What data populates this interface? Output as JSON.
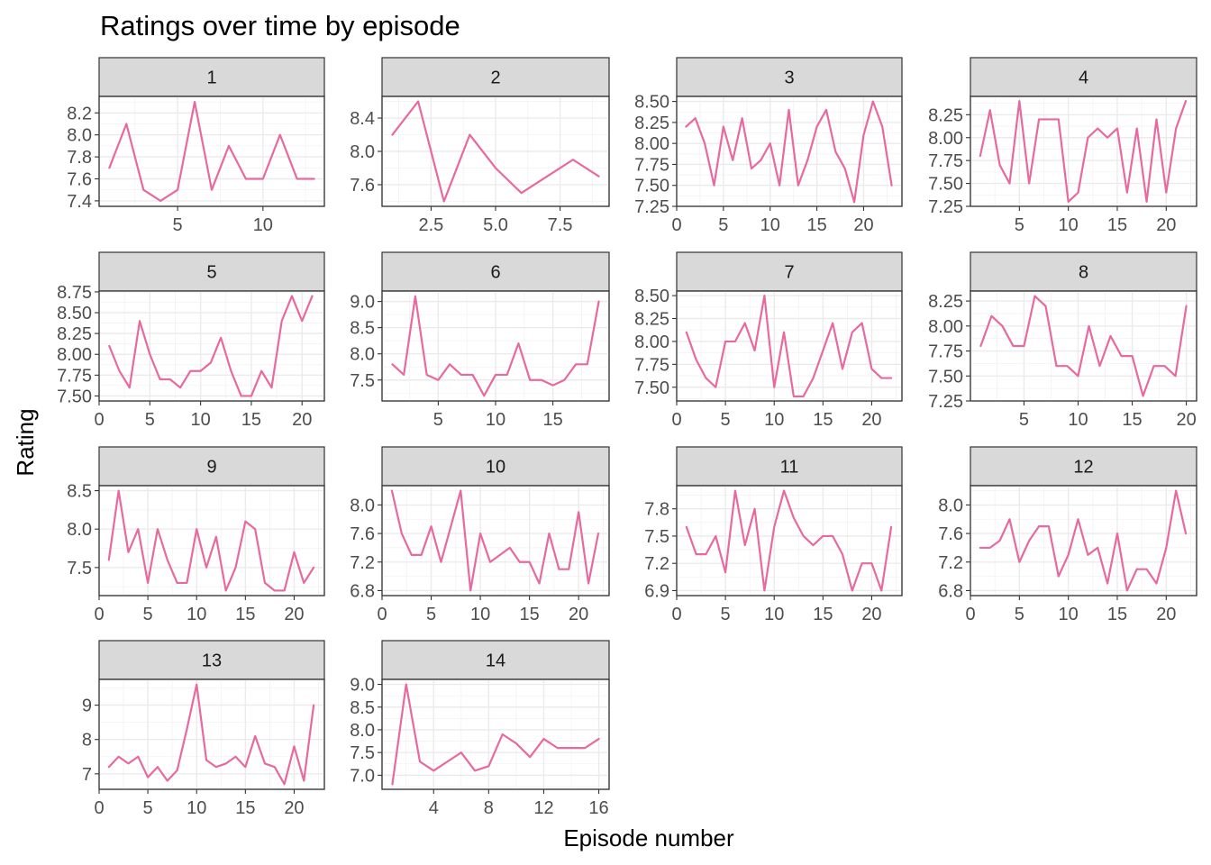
{
  "chart_data": {
    "type": "line",
    "title": "Ratings over time by episode",
    "xlabel": "Episode number",
    "ylabel": "Rating",
    "grid": true,
    "facet_layout": "4 columns, free scales",
    "line_color": "#e7699f",
    "strip_color": "#d9d9d9",
    "panels": [
      {
        "label": "1",
        "x": [
          1,
          2,
          3,
          4,
          5,
          6,
          7,
          8,
          9,
          10,
          11,
          12,
          13
        ],
        "y": [
          7.7,
          8.1,
          7.5,
          7.4,
          7.5,
          8.3,
          7.5,
          7.9,
          7.6,
          7.6,
          8.0,
          7.6,
          7.6
        ],
        "xlim": [
          0.4,
          13.6
        ],
        "ylim": [
          7.35,
          8.35
        ],
        "xticks": [
          5,
          10
        ],
        "yticks": [
          7.4,
          7.6,
          7.8,
          8.0,
          8.2
        ]
      },
      {
        "label": "2",
        "x": [
          1,
          2,
          3,
          4,
          5,
          6,
          7,
          8,
          9
        ],
        "y": [
          8.2,
          8.6,
          7.4,
          8.2,
          7.8,
          7.5,
          7.7,
          7.9,
          7.7
        ],
        "xlim": [
          0.6,
          9.4
        ],
        "ylim": [
          7.34,
          8.66
        ],
        "xticks": [
          2.5,
          5.0,
          7.5
        ],
        "yticks": [
          7.6,
          8.0,
          8.4
        ]
      },
      {
        "label": "3",
        "x": [
          1,
          2,
          3,
          4,
          5,
          6,
          7,
          8,
          9,
          10,
          11,
          12,
          13,
          14,
          15,
          16,
          17,
          18,
          19,
          20,
          21,
          22,
          23
        ],
        "y": [
          8.2,
          8.3,
          8.0,
          7.5,
          8.2,
          7.8,
          8.3,
          7.7,
          7.8,
          8.0,
          7.5,
          8.4,
          7.5,
          7.8,
          8.2,
          8.4,
          7.9,
          7.7,
          7.3,
          8.1,
          8.5,
          8.2,
          7.5
        ],
        "xlim": [
          0,
          24.1
        ],
        "ylim": [
          7.25,
          8.56
        ],
        "xticks": [
          0,
          5,
          10,
          15,
          20
        ],
        "yticks": [
          7.25,
          7.5,
          7.75,
          8.0,
          8.25,
          8.5
        ]
      },
      {
        "label": "4",
        "x": [
          1,
          2,
          3,
          4,
          5,
          6,
          7,
          8,
          9,
          10,
          11,
          12,
          13,
          14,
          15,
          16,
          17,
          18,
          19,
          20,
          21,
          22
        ],
        "y": [
          7.8,
          8.3,
          7.7,
          7.5,
          8.4,
          7.5,
          8.2,
          8.2,
          8.2,
          7.3,
          7.4,
          8.0,
          8.1,
          8.0,
          8.1,
          7.4,
          8.1,
          7.3,
          8.2,
          7.4,
          8.1,
          8.4
        ],
        "xlim": [
          0,
          23.1
        ],
        "ylim": [
          7.25,
          8.45
        ],
        "xticks": [
          5,
          10,
          15,
          20
        ],
        "yticks": [
          7.25,
          7.5,
          7.75,
          8.0,
          8.25
        ]
      },
      {
        "label": "5",
        "x": [
          1,
          2,
          3,
          4,
          5,
          6,
          7,
          8,
          9,
          10,
          11,
          12,
          13,
          14,
          15,
          16,
          17,
          18,
          19,
          20,
          21
        ],
        "y": [
          8.1,
          7.8,
          7.6,
          8.4,
          8.0,
          7.7,
          7.7,
          7.6,
          7.8,
          7.8,
          7.9,
          8.2,
          7.8,
          7.5,
          7.5,
          7.8,
          7.6,
          8.4,
          8.7,
          8.4,
          8.7
        ],
        "xlim": [
          0,
          22.2
        ],
        "ylim": [
          7.44,
          8.76
        ],
        "xticks": [
          0,
          5,
          10,
          15,
          20
        ],
        "yticks": [
          7.5,
          7.75,
          8.0,
          8.25,
          8.5,
          8.75
        ]
      },
      {
        "label": "6",
        "x": [
          1,
          2,
          3,
          4,
          5,
          6,
          7,
          8,
          9,
          10,
          11,
          12,
          13,
          14,
          15,
          16,
          17,
          18,
          19
        ],
        "y": [
          7.8,
          7.6,
          9.1,
          7.6,
          7.5,
          7.8,
          7.6,
          7.6,
          7.2,
          7.6,
          7.6,
          8.2,
          7.5,
          7.5,
          7.4,
          7.5,
          7.8,
          7.8,
          9.0
        ],
        "xlim": [
          0.1,
          19.9
        ],
        "ylim": [
          7.1,
          9.2
        ],
        "xticks": [
          5,
          10,
          15
        ],
        "yticks": [
          7.5,
          8.0,
          8.5,
          9.0
        ]
      },
      {
        "label": "7",
        "x": [
          1,
          2,
          3,
          4,
          5,
          6,
          7,
          8,
          9,
          10,
          11,
          12,
          13,
          14,
          15,
          16,
          17,
          18,
          19,
          20,
          21,
          22
        ],
        "y": [
          8.1,
          7.8,
          7.6,
          7.5,
          8.0,
          8.0,
          8.2,
          7.9,
          8.5,
          7.5,
          8.1,
          7.4,
          7.4,
          7.6,
          7.9,
          8.2,
          7.7,
          8.1,
          8.2,
          7.7,
          7.6,
          7.6
        ],
        "xlim": [
          0,
          23.1
        ],
        "ylim": [
          7.35,
          8.55
        ],
        "xticks": [
          0,
          5,
          10,
          15,
          20
        ],
        "yticks": [
          7.5,
          7.75,
          8.0,
          8.25,
          8.5
        ]
      },
      {
        "label": "8",
        "x": [
          1,
          2,
          3,
          4,
          5,
          6,
          7,
          8,
          9,
          10,
          11,
          12,
          13,
          14,
          15,
          16,
          17,
          18,
          19,
          20
        ],
        "y": [
          7.8,
          8.1,
          8.0,
          7.8,
          7.8,
          8.3,
          8.2,
          7.6,
          7.6,
          7.5,
          8.0,
          7.6,
          7.9,
          7.7,
          7.7,
          7.3,
          7.6,
          7.6,
          7.5,
          8.2
        ],
        "xlim": [
          0.05,
          20.95
        ],
        "ylim": [
          7.25,
          8.35
        ],
        "xticks": [
          5,
          10,
          15,
          20
        ],
        "yticks": [
          7.25,
          7.5,
          7.75,
          8.0,
          8.25
        ]
      },
      {
        "label": "9",
        "x": [
          1,
          2,
          3,
          4,
          5,
          6,
          7,
          8,
          9,
          10,
          11,
          12,
          13,
          14,
          15,
          16,
          17,
          18,
          19,
          20,
          21,
          22
        ],
        "y": [
          7.6,
          8.5,
          7.7,
          8.0,
          7.3,
          8.0,
          7.6,
          7.3,
          7.3,
          8.0,
          7.5,
          7.9,
          7.2,
          7.5,
          8.1,
          8.0,
          7.3,
          7.2,
          7.2,
          7.7,
          7.3,
          7.5
        ],
        "xlim": [
          0,
          23.1
        ],
        "ylim": [
          7.135,
          8.565
        ],
        "xticks": [
          0,
          5,
          10,
          15,
          20
        ],
        "yticks": [
          7.5,
          8.0,
          8.5
        ]
      },
      {
        "label": "10",
        "x": [
          1,
          2,
          3,
          4,
          5,
          6,
          7,
          8,
          9,
          10,
          11,
          12,
          13,
          14,
          15,
          16,
          17,
          18,
          19,
          20,
          21,
          22
        ],
        "y": [
          8.2,
          7.6,
          7.3,
          7.3,
          7.7,
          7.2,
          7.7,
          8.2,
          6.8,
          7.6,
          7.2,
          7.3,
          7.4,
          7.2,
          7.2,
          6.9,
          7.6,
          7.1,
          7.1,
          7.9,
          6.9,
          7.6
        ],
        "xlim": [
          0,
          23.1
        ],
        "ylim": [
          6.73,
          8.27
        ],
        "xticks": [
          0,
          5,
          10,
          15,
          20
        ],
        "yticks": [
          6.8,
          7.2,
          7.6,
          8.0
        ]
      },
      {
        "label": "11",
        "x": [
          1,
          2,
          3,
          4,
          5,
          6,
          7,
          8,
          9,
          10,
          11,
          12,
          13,
          14,
          15,
          16,
          17,
          18,
          19,
          20,
          21,
          22
        ],
        "y": [
          7.6,
          7.3,
          7.3,
          7.5,
          7.1,
          8.0,
          7.4,
          7.8,
          6.9,
          7.6,
          8.0,
          7.7,
          7.5,
          7.4,
          7.5,
          7.5,
          7.3,
          6.9,
          7.2,
          7.2,
          6.9,
          7.6
        ],
        "xlim": [
          0,
          23.1
        ],
        "ylim": [
          6.845,
          8.055
        ],
        "xticks": [
          0,
          5,
          10,
          15,
          20
        ],
        "yticks": [
          6.9,
          7.2,
          7.5,
          7.8
        ]
      },
      {
        "label": "12",
        "x": [
          1,
          2,
          3,
          4,
          5,
          6,
          7,
          8,
          9,
          10,
          11,
          12,
          13,
          14,
          15,
          16,
          17,
          18,
          19,
          20,
          21,
          22
        ],
        "y": [
          7.4,
          7.4,
          7.5,
          7.8,
          7.2,
          7.5,
          7.7,
          7.7,
          7.0,
          7.3,
          7.8,
          7.3,
          7.4,
          6.9,
          7.6,
          6.8,
          7.1,
          7.1,
          6.9,
          7.4,
          8.2,
          7.6
        ],
        "xlim": [
          0,
          23.1
        ],
        "ylim": [
          6.73,
          8.27
        ],
        "xticks": [
          0,
          5,
          10,
          15,
          20
        ],
        "yticks": [
          6.8,
          7.2,
          7.6,
          8.0
        ]
      },
      {
        "label": "13",
        "x": [
          1,
          2,
          3,
          4,
          5,
          6,
          7,
          8,
          9,
          10,
          11,
          12,
          13,
          14,
          15,
          16,
          17,
          18,
          19,
          20,
          21,
          22
        ],
        "y": [
          7.2,
          7.5,
          7.3,
          7.5,
          6.9,
          7.2,
          6.8,
          7.1,
          8.3,
          9.6,
          7.4,
          7.2,
          7.3,
          7.5,
          7.2,
          8.1,
          7.3,
          7.2,
          6.7,
          7.8,
          6.8,
          9.0
        ],
        "xlim": [
          0,
          23.1
        ],
        "ylim": [
          6.55,
          9.75
        ],
        "xticks": [
          0,
          5,
          10,
          15,
          20
        ],
        "yticks": [
          7,
          8,
          9
        ]
      },
      {
        "label": "14",
        "x": [
          1,
          2,
          3,
          4,
          5,
          6,
          7,
          8,
          9,
          10,
          11,
          12,
          13,
          14,
          15,
          16
        ],
        "y": [
          6.8,
          9.0,
          7.3,
          7.1,
          7.3,
          7.5,
          7.1,
          7.2,
          7.9,
          7.7,
          7.4,
          7.8,
          7.6,
          7.6,
          7.6,
          7.8
        ],
        "xlim": [
          0.25,
          16.75
        ],
        "ylim": [
          6.69,
          9.11
        ],
        "xticks": [
          4,
          8,
          12,
          16
        ],
        "yticks": [
          7.0,
          7.5,
          8.0,
          8.5,
          9.0
        ]
      }
    ]
  }
}
